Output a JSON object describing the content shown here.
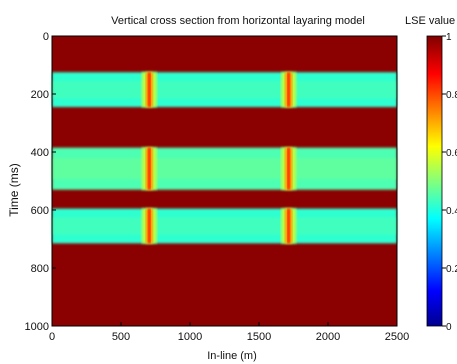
{
  "chart_data": {
    "type": "heatmap",
    "title": "Vertical cross section from horizontal layaring model",
    "xlabel": "In-line (m)",
    "ylabel": "Time (ms)",
    "xlim": [
      0,
      2500
    ],
    "ylim": [
      1000,
      0
    ],
    "x_ticks": [
      "0",
      "500",
      "1000",
      "1500",
      "2000",
      "2500"
    ],
    "x_tick_values": [
      0,
      500,
      1000,
      1500,
      2000,
      2500
    ],
    "y_ticks": [
      "0",
      "200",
      "400",
      "600",
      "800",
      "1000"
    ],
    "y_tick_values": [
      0,
      200,
      400,
      600,
      800,
      1000
    ],
    "background_value": 1.0,
    "layers": [
      {
        "t_start": 125,
        "t_end": 245,
        "value": 0.42
      },
      {
        "t_start": 385,
        "t_end": 530,
        "value": 0.45
      },
      {
        "t_start": 595,
        "t_end": 715,
        "value": 0.42
      }
    ],
    "faults": [
      {
        "x_start": 650,
        "x_end": 760,
        "value": 0.72
      },
      {
        "x_start": 1660,
        "x_end": 1770,
        "value": 0.72
      }
    ],
    "colorbar": {
      "title": "LSE value",
      "range": [
        0,
        1
      ],
      "ticks": [
        "0",
        "0.2",
        "0.4",
        "0.6",
        "0.8",
        "1"
      ],
      "tick_values": [
        0,
        0.2,
        0.4,
        0.6,
        0.8,
        1.0
      ],
      "colormap": "jet"
    },
    "colors": {
      "background": "#8b0000",
      "axis": "#000000"
    }
  }
}
